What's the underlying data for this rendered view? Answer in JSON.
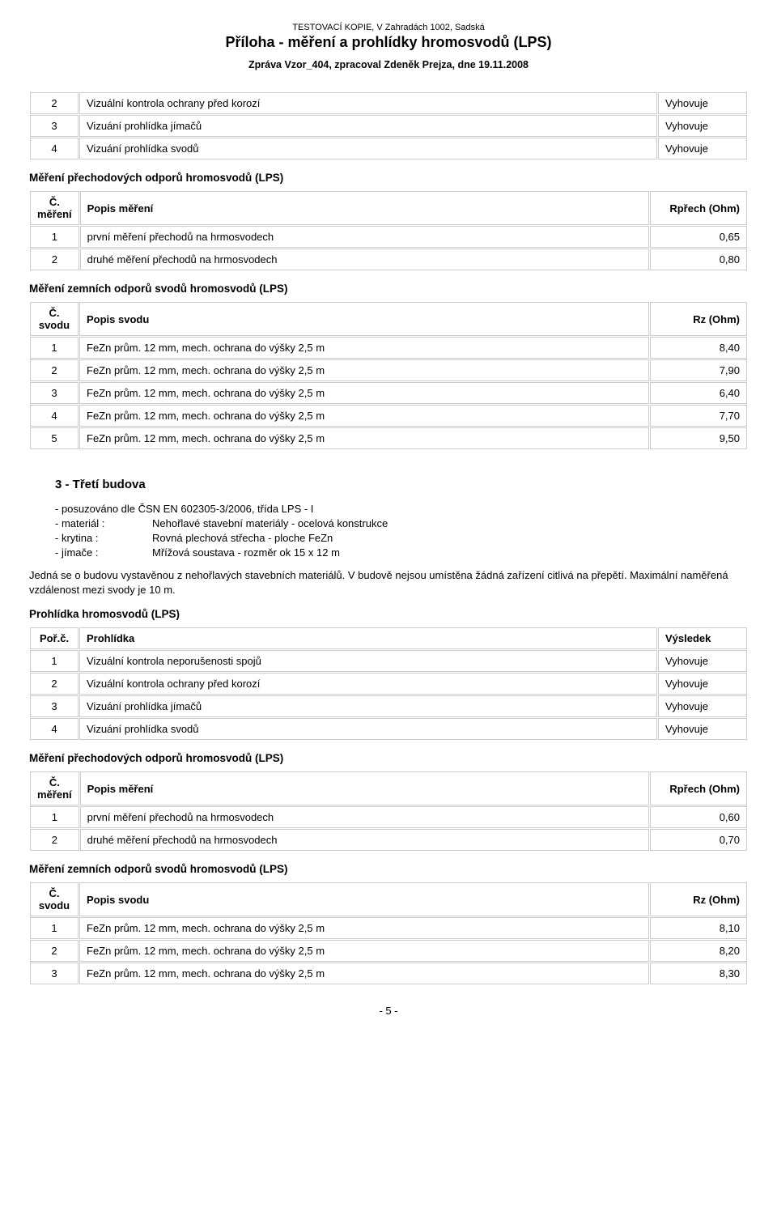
{
  "topnote": "TESTOVACÍ KOPIE, V Zahradách 1002, Sadská",
  "title": "Příloha - měření a prohlídky hromosvodů (LPS)",
  "subtitle": "Zpráva Vzor_404, zpracoval Zdeněk Prejza, dne 19.11.2008",
  "table_pr1": {
    "rows": [
      {
        "n": "2",
        "desc": "Vizuální kontrola ochrany před korozí",
        "res": "Vyhovuje"
      },
      {
        "n": "3",
        "desc": "Vizuání prohlídka jímačů",
        "res": "Vyhovuje"
      },
      {
        "n": "4",
        "desc": "Vizuání prohlídka svodů",
        "res": "Vyhovuje"
      }
    ]
  },
  "sec_mer_prech": "Měření přechodových odporů hromosvodů (LPS)",
  "hdr_mer": {
    "c1": "Č. měření",
    "c2": "Popis měření",
    "c3": "Rpřech (Ohm)"
  },
  "table_mer1": {
    "rows": [
      {
        "n": "1",
        "desc": "první měření přechodů na hrmosvodech",
        "val": "0,65"
      },
      {
        "n": "2",
        "desc": "druhé měření přechodů na hrmosvodech",
        "val": "0,80"
      }
    ]
  },
  "sec_mer_zem": "Měření zemních odporů svodů hromosvodů (LPS)",
  "hdr_sv": {
    "c1": "Č. svodu",
    "c2": "Popis svodu",
    "c3": "Rz (Ohm)"
  },
  "table_sv1": {
    "rows": [
      {
        "n": "1",
        "desc": "FeZn prům. 12 mm, mech. ochrana do výšky 2,5 m",
        "val": "8,40"
      },
      {
        "n": "2",
        "desc": "FeZn prům. 12 mm, mech. ochrana do výšky 2,5 m",
        "val": "7,90"
      },
      {
        "n": "3",
        "desc": "FeZn prům. 12 mm, mech. ochrana do výšky 2,5 m",
        "val": "6,40"
      },
      {
        "n": "4",
        "desc": "FeZn prům. 12 mm, mech. ochrana do výšky 2,5 m",
        "val": "7,70"
      },
      {
        "n": "5",
        "desc": "FeZn prům. 12 mm, mech. ochrana do výšky 2,5 m",
        "val": "9,50"
      }
    ]
  },
  "building3_head": "3 - Třetí budova",
  "b3_eval": "- posuzováno dle ČSN EN 602305-3/2006, třída LPS - I",
  "b3_props": [
    {
      "lbl": "- materiál :",
      "val": "Nehořlavé stavební materiály - ocelová konstrukce"
    },
    {
      "lbl": "- krytina :",
      "val": "Rovná plechová střecha - ploche FeZn"
    },
    {
      "lbl": "- jímače :",
      "val": "Mřížová soustava - rozměr ok 15 x 12 m"
    }
  ],
  "b3_note": "Jedná se o budovu vystavěnou z nehořlavých stavebních materiálů. V budově nejsou umístěna žádná zařízení citlivá na přepětí. Maximální naměřená vzdálenost mezi svody je 10 m.",
  "sec_prohlidka": "Prohlídka hromosvodů (LPS)",
  "hdr_pr": {
    "c1": "Poř.č.",
    "c2": "Prohlídka",
    "c3": "Výsledek"
  },
  "table_pr2": {
    "rows": [
      {
        "n": "1",
        "desc": "Vizuální kontrola neporušenosti spojů",
        "res": "Vyhovuje"
      },
      {
        "n": "2",
        "desc": "Vizuální kontrola ochrany před korozí",
        "res": "Vyhovuje"
      },
      {
        "n": "3",
        "desc": "Vizuání prohlídka jímačů",
        "res": "Vyhovuje"
      },
      {
        "n": "4",
        "desc": "Vizuání prohlídka svodů",
        "res": "Vyhovuje"
      }
    ]
  },
  "table_mer2": {
    "rows": [
      {
        "n": "1",
        "desc": "první měření přechodů na hrmosvodech",
        "val": "0,60"
      },
      {
        "n": "2",
        "desc": "druhé měření přechodů na hrmosvodech",
        "val": "0,70"
      }
    ]
  },
  "table_sv2": {
    "rows": [
      {
        "n": "1",
        "desc": "FeZn prům. 12 mm, mech. ochrana do výšky 2,5 m",
        "val": "8,10"
      },
      {
        "n": "2",
        "desc": "FeZn prům. 12 mm, mech. ochrana do výšky 2,5 m",
        "val": "8,20"
      },
      {
        "n": "3",
        "desc": "FeZn prům. 12 mm, mech. ochrana do výšky 2,5 m",
        "val": "8,30"
      }
    ]
  },
  "pagenum": "- 5 -"
}
